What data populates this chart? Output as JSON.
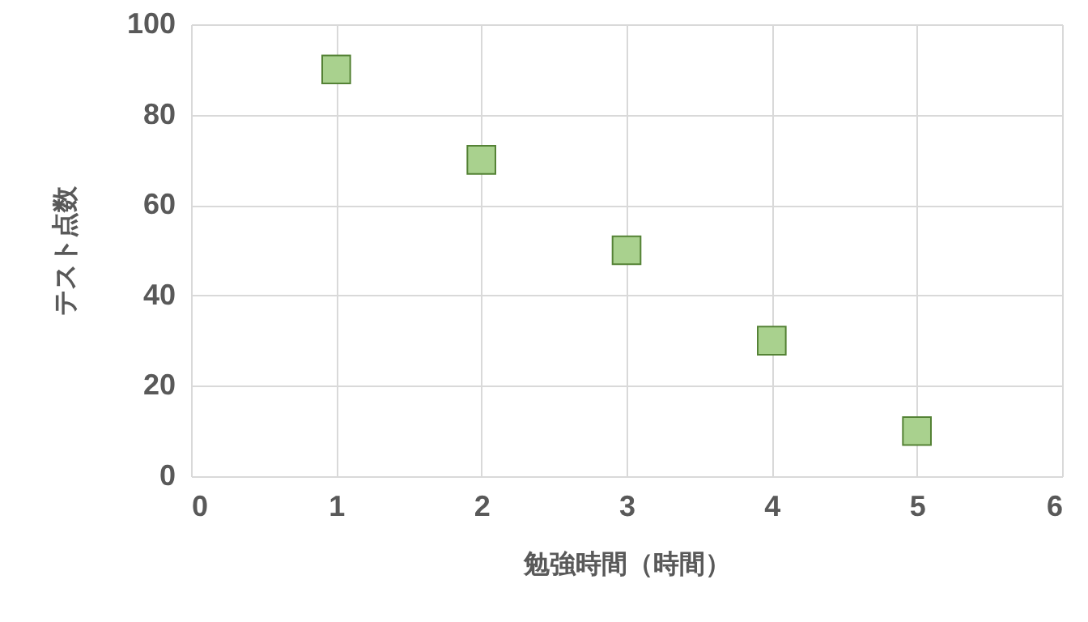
{
  "chart_data": {
    "type": "scatter",
    "xlabel": "勉強時間（時間）",
    "ylabel": "テスト点数",
    "x": [
      1,
      2,
      3,
      4,
      5
    ],
    "series": [
      {
        "color": "#a9d18e",
        "values": [
          90,
          70,
          50,
          30,
          10
        ]
      }
    ],
    "xlim": [
      0,
      6
    ],
    "xticks": [
      0,
      1,
      2,
      3,
      4,
      5,
      6
    ],
    "ylim": [
      0,
      100
    ],
    "yticks": [
      0,
      20,
      40,
      60,
      80,
      100
    ],
    "grid": true,
    "marker": "square"
  }
}
